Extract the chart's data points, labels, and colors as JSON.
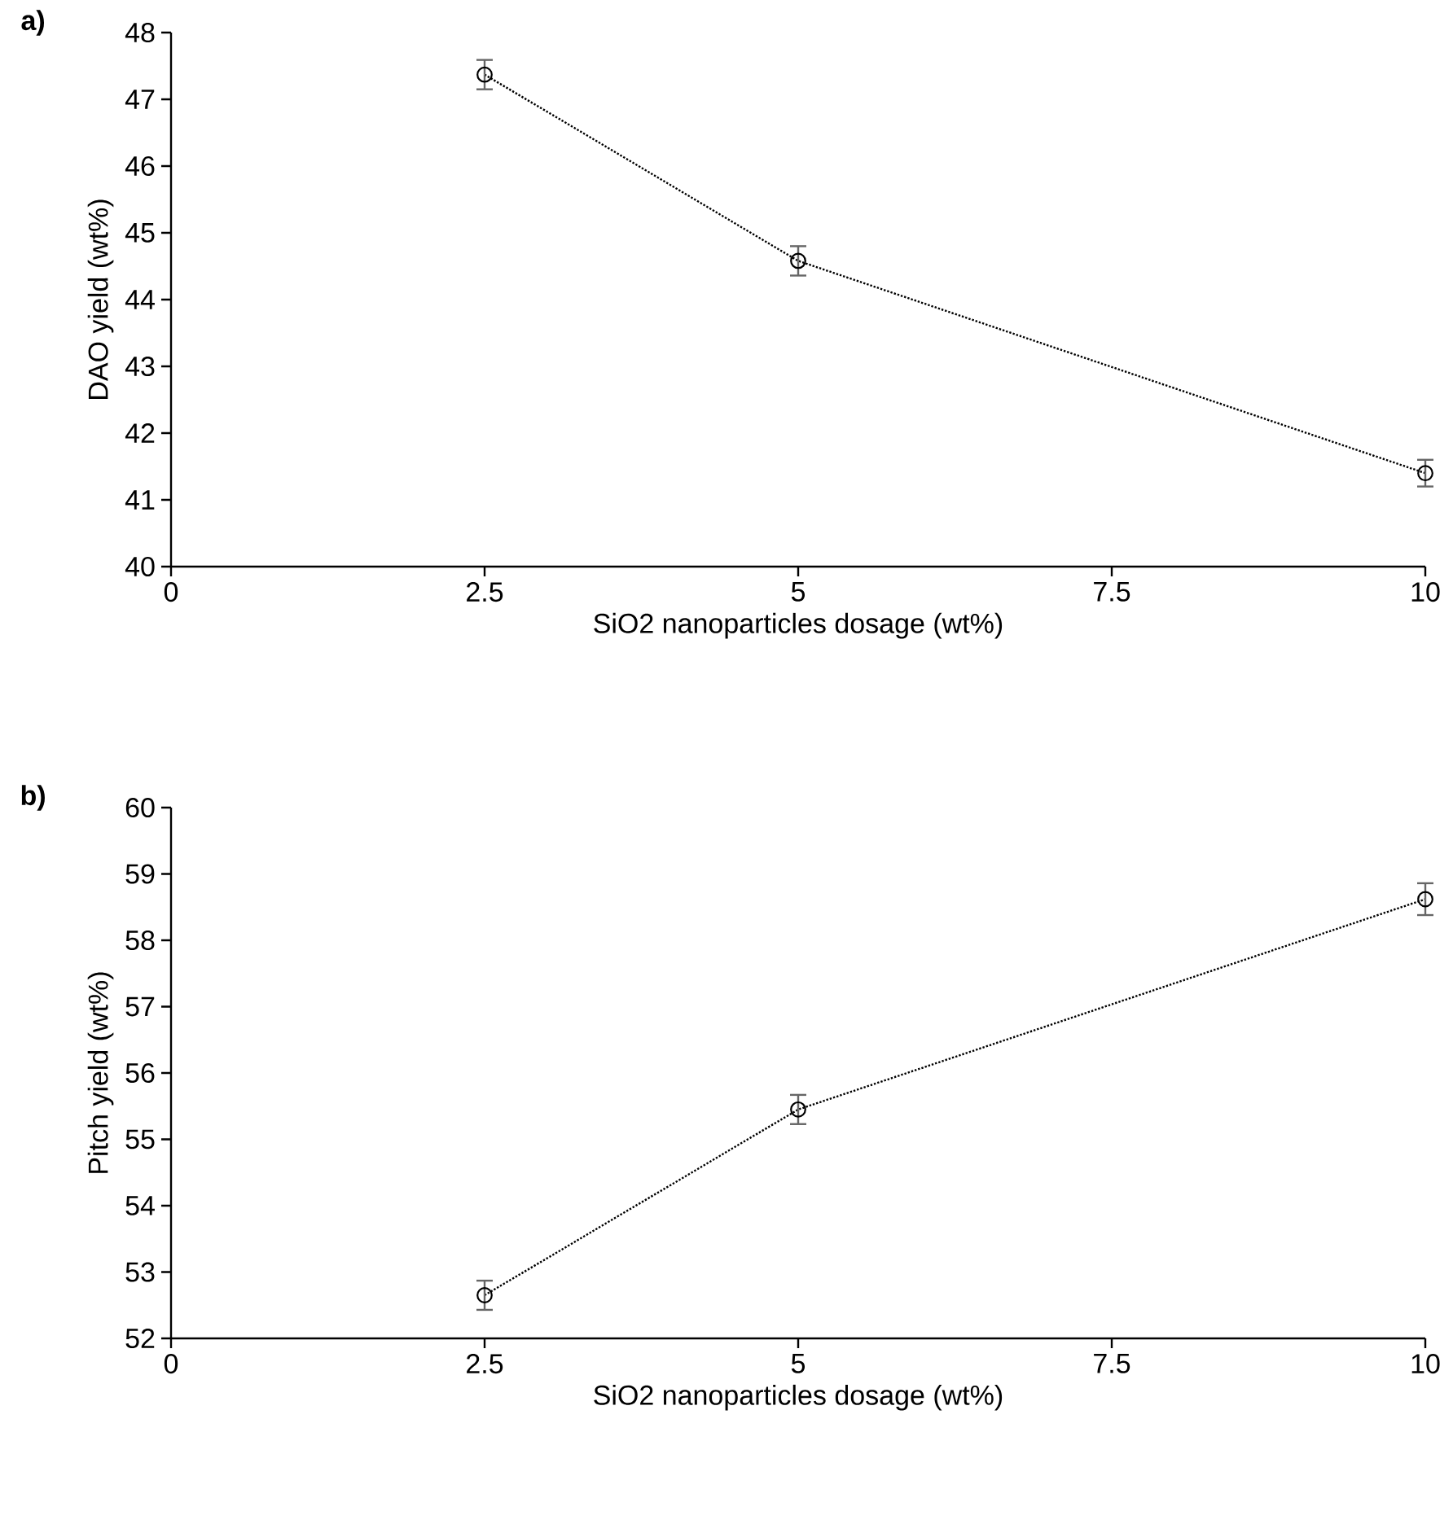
{
  "chart_data": [
    {
      "type": "line",
      "title": "a)",
      "xlabel": "SiO2 nanoparticles dosage (wt%)",
      "ylabel": "DAO yield (wt%)",
      "x": [
        2.5,
        5,
        10
      ],
      "series": [
        {
          "color": "#000000",
          "values": [
            47.37,
            44.58,
            41.4
          ],
          "errors": [
            0.22,
            0.22,
            0.2
          ]
        }
      ],
      "xlim": [
        0,
        10
      ],
      "xticks": [
        0,
        2.5,
        5,
        7.5,
        10
      ],
      "ylim": [
        40,
        48
      ],
      "yticks": [
        40,
        41,
        42,
        43,
        44,
        45,
        46,
        47,
        48
      ],
      "marker": "circle",
      "line_style": "dotted"
    },
    {
      "type": "line",
      "title": "b)",
      "xlabel": "SiO2 nanoparticles dosage (wt%)",
      "ylabel": "Pitch yield (wt%)",
      "x": [
        2.5,
        5,
        10
      ],
      "series": [
        {
          "color": "#000000",
          "values": [
            52.65,
            55.45,
            58.62
          ],
          "errors": [
            0.22,
            0.22,
            0.24
          ]
        }
      ],
      "xlim": [
        0,
        10
      ],
      "xticks": [
        0,
        2.5,
        5,
        7.5,
        10
      ],
      "ylim": [
        52,
        60
      ],
      "yticks": [
        52,
        53,
        54,
        55,
        56,
        57,
        58,
        59,
        60
      ],
      "marker": "circle",
      "line_style": "dotted"
    }
  ]
}
